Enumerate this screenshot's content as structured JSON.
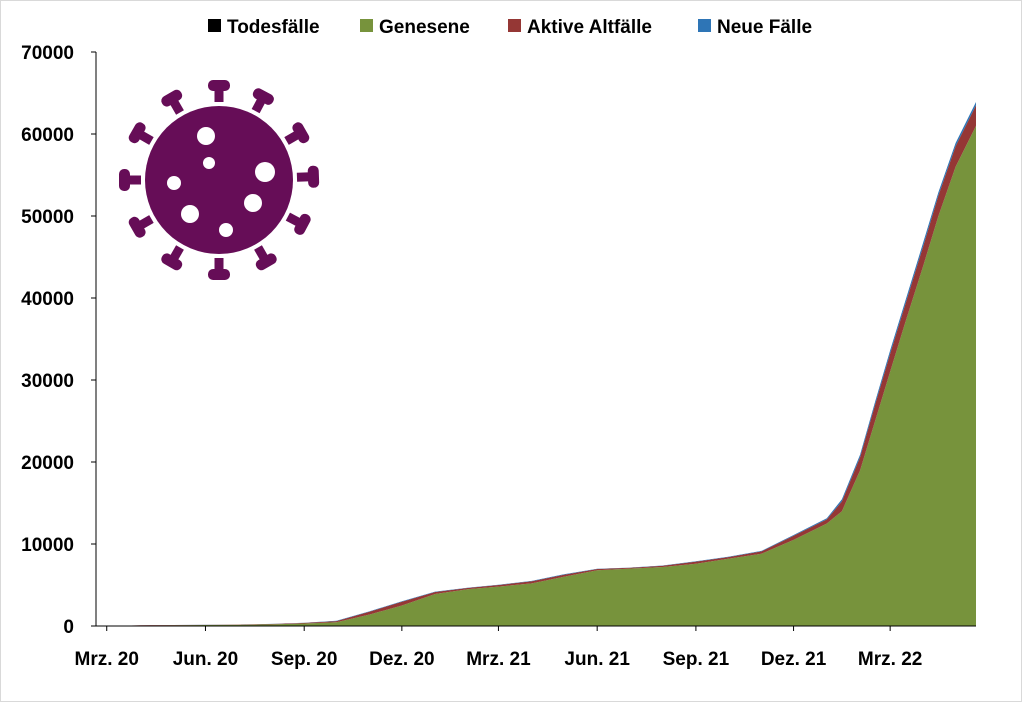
{
  "chart_data": {
    "type": "area",
    "stacked": true,
    "legend_position": "top",
    "grid": false,
    "ylim": [
      0,
      70000
    ],
    "y_ticks": [
      "0",
      "10000",
      "20000",
      "30000",
      "40000",
      "50000",
      "60000",
      "70000"
    ],
    "x_ticks": [
      "Mrz. 20",
      "Jun. 20",
      "Sep. 20",
      "Dez. 20",
      "Mrz. 21",
      "Jun. 21",
      "Sep. 21",
      "Dez. 21",
      "Mrz. 22"
    ],
    "x": [
      "2020-03-01",
      "2020-04-01",
      "2020-05-01",
      "2020-06-01",
      "2020-07-01",
      "2020-08-01",
      "2020-09-01",
      "2020-10-01",
      "2020-11-01",
      "2020-12-01",
      "2021-01-01",
      "2021-02-01",
      "2021-03-01",
      "2021-04-01",
      "2021-05-01",
      "2021-06-01",
      "2021-07-01",
      "2021-08-01",
      "2021-09-01",
      "2021-10-01",
      "2021-11-01",
      "2021-12-01",
      "2022-01-01",
      "2022-01-15",
      "2022-02-01",
      "2022-02-15",
      "2022-03-01",
      "2022-03-15",
      "2022-04-01",
      "2022-04-15",
      "2022-05-01",
      "2022-05-20"
    ],
    "series": [
      {
        "name": "Todesfälle",
        "color": "#000000",
        "values": [
          0,
          0,
          0,
          0,
          0,
          0,
          0,
          0,
          0,
          0,
          0,
          0,
          0,
          0,
          0,
          0,
          0,
          0,
          0,
          0,
          0,
          0,
          0,
          0,
          0,
          0,
          0,
          0,
          0,
          0,
          0,
          0
        ]
      },
      {
        "name": "Genesene",
        "color": "#77933c",
        "values": [
          0,
          50,
          100,
          120,
          150,
          200,
          300,
          450,
          1400,
          2500,
          3900,
          4500,
          4800,
          5200,
          6000,
          6800,
          7000,
          7200,
          7600,
          8200,
          8800,
          10500,
          12500,
          14000,
          19000,
          25000,
          31000,
          37000,
          44000,
          50000,
          56000,
          61000
        ]
      },
      {
        "name": "Aktive Altfälle",
        "color": "#953735",
        "values": [
          0,
          30,
          20,
          20,
          30,
          50,
          80,
          150,
          350,
          450,
          250,
          150,
          200,
          250,
          250,
          150,
          100,
          150,
          250,
          200,
          300,
          500,
          500,
          1200,
          1600,
          2000,
          2200,
          2200,
          2400,
          2500,
          2500,
          2500
        ]
      },
      {
        "name": "Neue Fälle",
        "color": "#2e75b6",
        "values": [
          0,
          10,
          5,
          5,
          5,
          10,
          15,
          30,
          60,
          80,
          40,
          30,
          40,
          50,
          50,
          30,
          20,
          30,
          40,
          40,
          60,
          100,
          150,
          250,
          300,
          350,
          400,
          400,
          450,
          400,
          400,
          400
        ]
      }
    ]
  }
}
